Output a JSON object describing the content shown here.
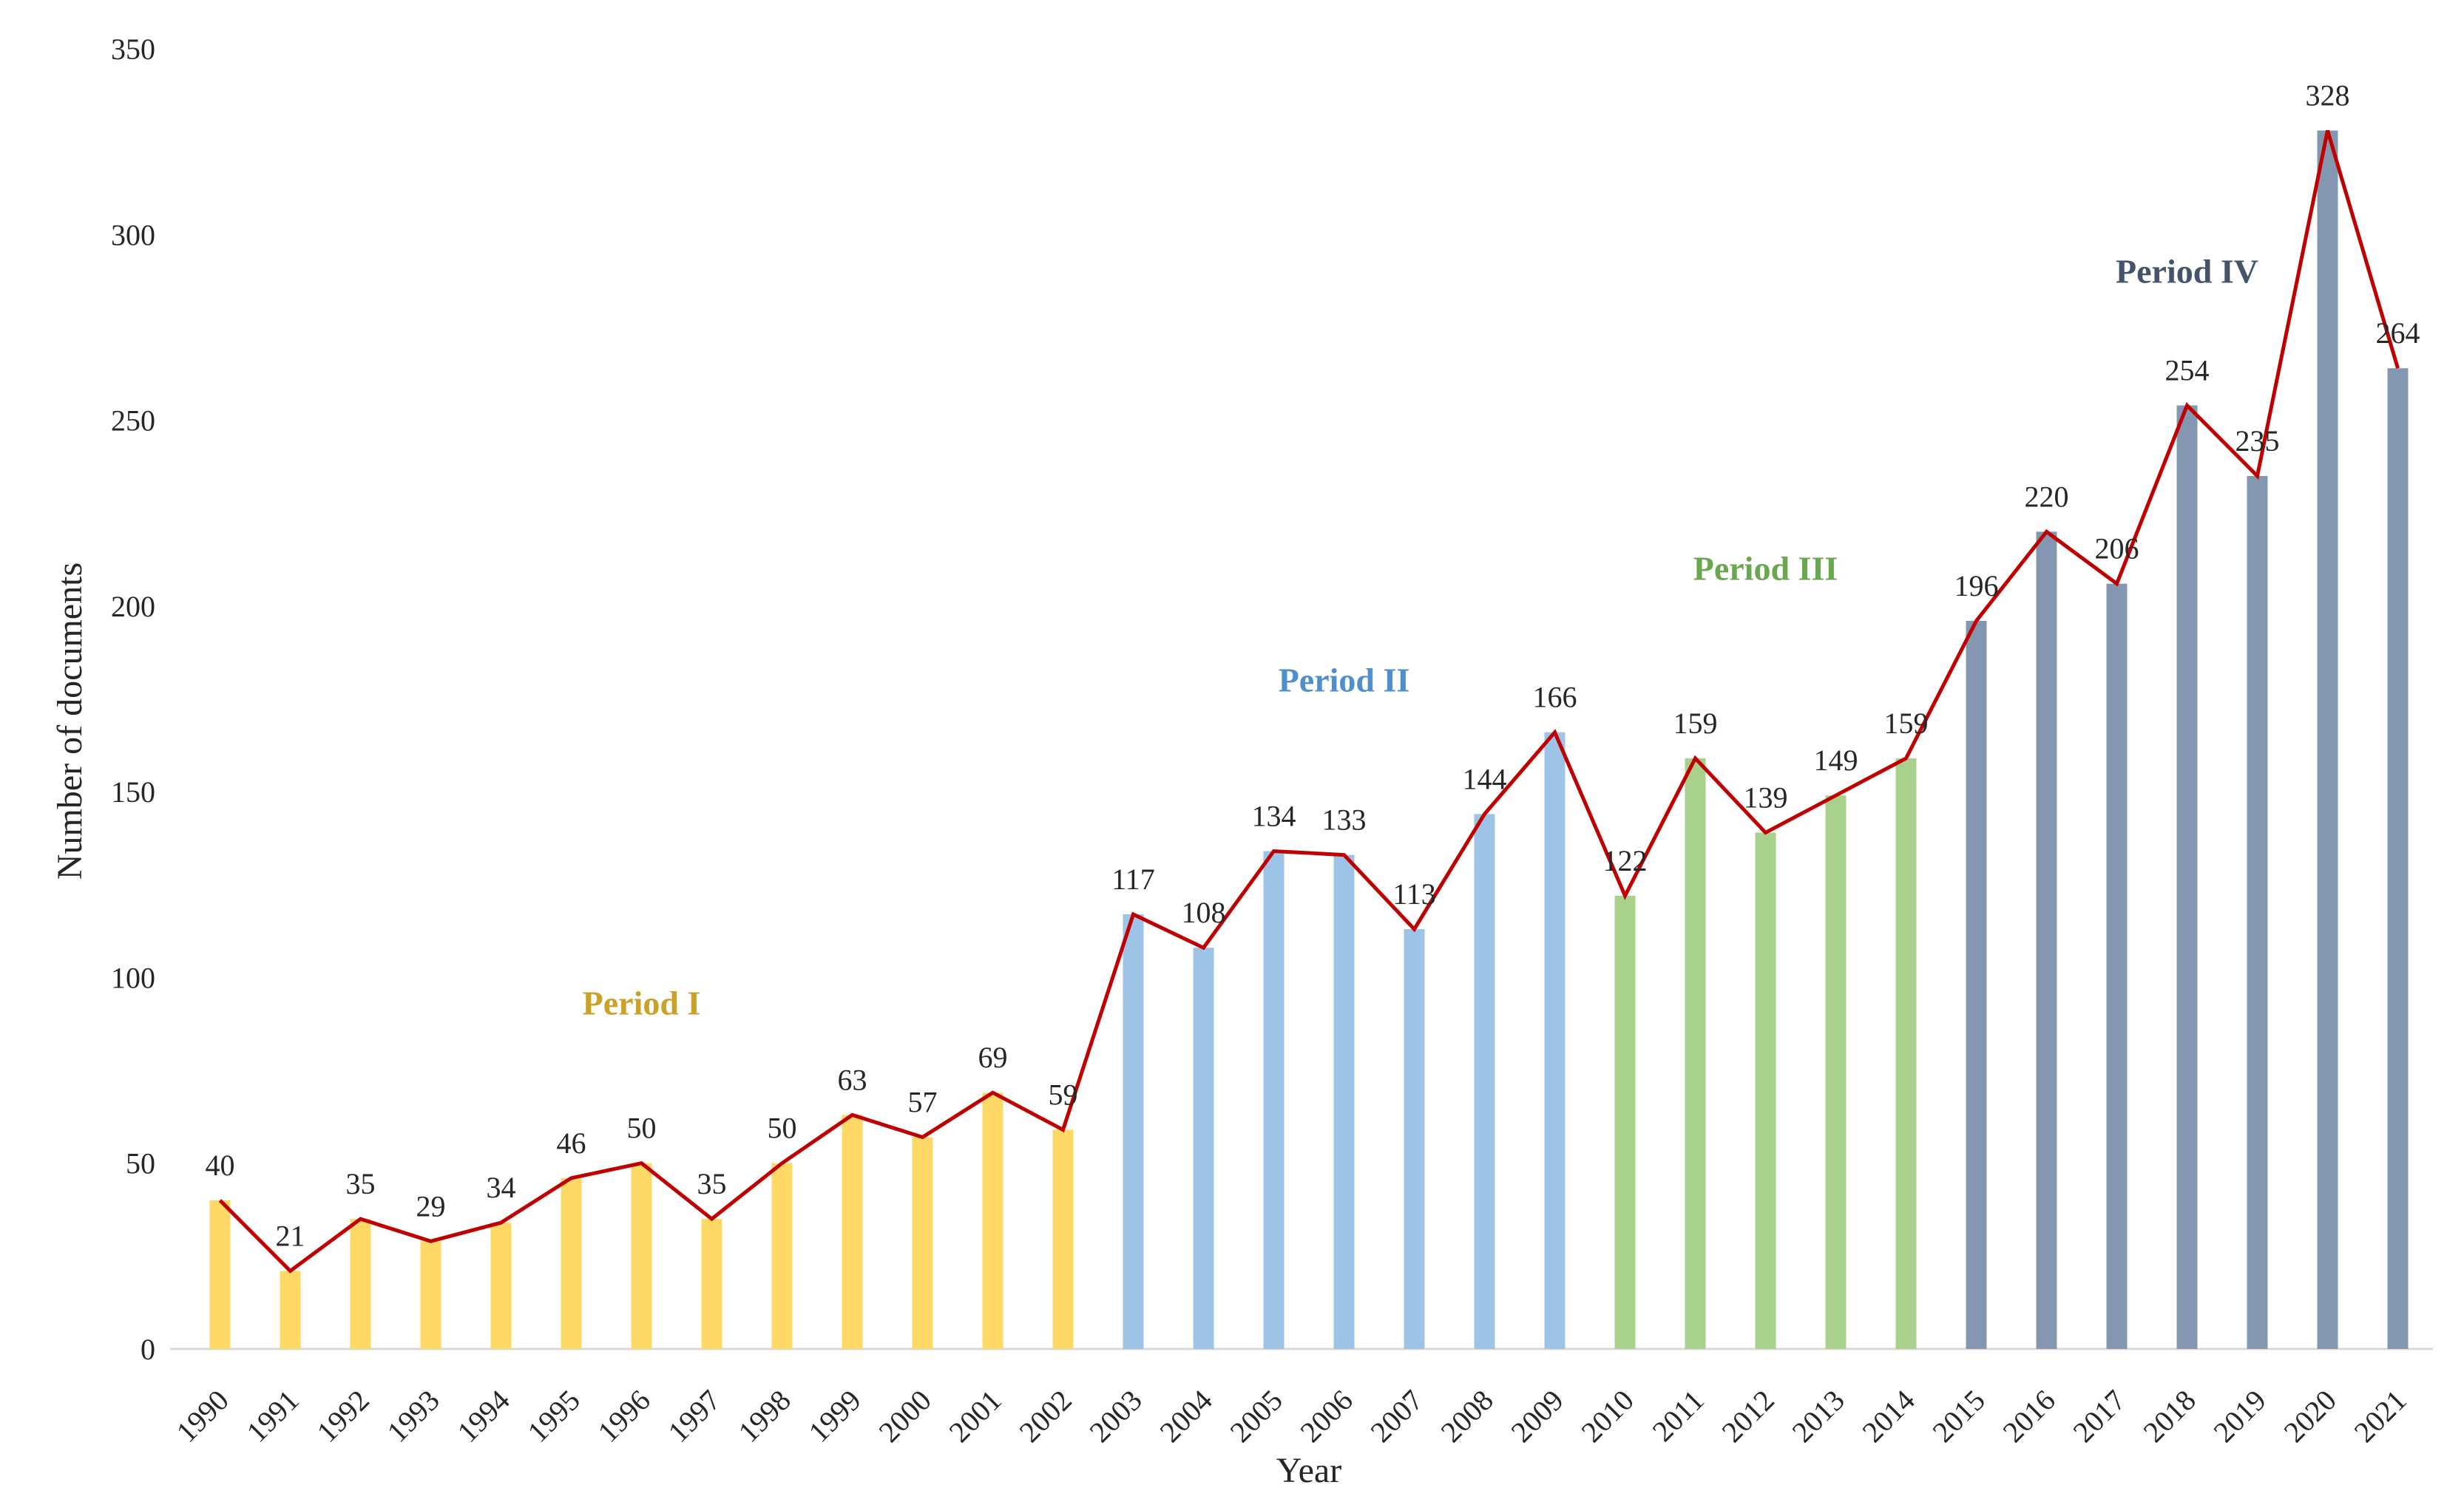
{
  "chart_data": {
    "type": "bar",
    "title": "",
    "xlabel": "Year",
    "ylabel": "Number of documents",
    "ylim": [
      0,
      350
    ],
    "yticks": [
      0,
      50,
      100,
      150,
      200,
      250,
      300,
      350
    ],
    "grid": false,
    "categories": [
      "1990",
      "1991",
      "1992",
      "1993",
      "1994",
      "1995",
      "1996",
      "1997",
      "1998",
      "1999",
      "2000",
      "2001",
      "2002",
      "2003",
      "2004",
      "2005",
      "2006",
      "2007",
      "2008",
      "2009",
      "2010",
      "2011",
      "2012",
      "2013",
      "2014",
      "2015",
      "2016",
      "2017",
      "2018",
      "2019",
      "2020",
      "2021"
    ],
    "values": [
      40,
      21,
      35,
      29,
      34,
      46,
      50,
      35,
      50,
      63,
      57,
      69,
      59,
      117,
      108,
      134,
      133,
      113,
      144,
      166,
      122,
      159,
      139,
      149,
      159,
      196,
      220,
      206,
      254,
      235,
      328,
      264
    ],
    "overlay_line": {
      "color": "#C00000",
      "values": [
        40,
        21,
        35,
        29,
        34,
        46,
        50,
        35,
        50,
        63,
        57,
        69,
        59,
        117,
        108,
        134,
        133,
        113,
        144,
        166,
        122,
        159,
        139,
        149,
        159,
        196,
        220,
        206,
        254,
        235,
        328,
        264
      ]
    },
    "periods": [
      {
        "name": "Period I",
        "start": "1990",
        "end": "2002",
        "bar_color": "#FFD966",
        "label_color": "#C9A227",
        "label_anchor": {
          "year": "1996",
          "value": 90
        }
      },
      {
        "name": "Period II",
        "start": "2003",
        "end": "2009",
        "bar_color": "#9DC3E6",
        "label_color": "#4F8FCF",
        "label_anchor": {
          "year": "2006",
          "value": 177
        }
      },
      {
        "name": "Period III",
        "start": "2010",
        "end": "2014",
        "bar_color": "#A9D18E",
        "label_color": "#6AA84F",
        "label_anchor": {
          "year": "2012",
          "value": 207
        }
      },
      {
        "name": "Period IV",
        "start": "2015",
        "end": "2021",
        "bar_color": "#8497B0",
        "label_color": "#44546A",
        "label_anchor": {
          "year": "2018",
          "value": 287
        }
      }
    ]
  }
}
